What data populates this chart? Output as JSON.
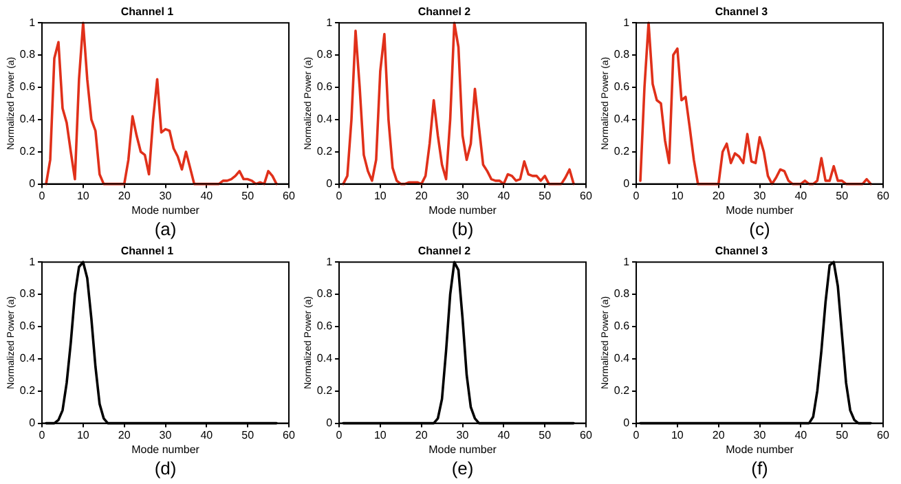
{
  "chart_data": [
    {
      "type": "line",
      "title": "Channel 1",
      "xlabel": "Mode number",
      "ylabel": "Normalized Power (a)",
      "marker": "none",
      "annotations": [
        "(a)"
      ],
      "xlim": [
        0,
        60
      ],
      "xticks": [
        0,
        10,
        20,
        30,
        40,
        50,
        60
      ],
      "ylim": [
        0,
        1
      ],
      "yticks": [
        0,
        0.2,
        0.4,
        0.6,
        0.8,
        1
      ],
      "x": [
        1,
        2,
        3,
        4,
        5,
        6,
        7,
        8,
        9,
        10,
        11,
        12,
        13,
        14,
        15,
        16,
        17,
        18,
        19,
        20,
        21,
        22,
        23,
        24,
        25,
        26,
        27,
        28,
        29,
        30,
        31,
        32,
        33,
        34,
        35,
        36,
        37,
        38,
        39,
        40,
        41,
        42,
        43,
        44,
        45,
        46,
        47,
        48,
        49,
        50,
        51,
        52,
        53,
        54,
        55,
        56,
        57
      ],
      "series": [
        {
          "color": "#e0301a",
          "values": [
            0,
            0.15,
            0.78,
            0.88,
            0.47,
            0.38,
            0.2,
            0.03,
            0.65,
            1,
            0.65,
            0.4,
            0.33,
            0.06,
            0,
            0,
            0,
            0,
            0,
            0,
            0.15,
            0.42,
            0.3,
            0.2,
            0.18,
            0.06,
            0.4,
            0.65,
            0.32,
            0.34,
            0.33,
            0.22,
            0.17,
            0.09,
            0.2,
            0.1,
            0,
            0,
            0,
            0,
            0,
            0,
            0,
            0.02,
            0.02,
            0.03,
            0.05,
            0.08,
            0.03,
            0.03,
            0.02,
            0,
            0.01,
            0,
            0.08,
            0.05,
            0
          ]
        }
      ]
    },
    {
      "type": "line",
      "title": "Channel 2",
      "xlabel": "Mode number",
      "ylabel": "Normalized Power (a)",
      "marker": "none",
      "annotations": [
        "(b)"
      ],
      "xlim": [
        0,
        60
      ],
      "xticks": [
        0,
        10,
        20,
        30,
        40,
        50,
        60
      ],
      "ylim": [
        0,
        1
      ],
      "yticks": [
        0,
        0.2,
        0.4,
        0.6,
        0.8,
        1
      ],
      "x": [
        1,
        2,
        3,
        4,
        5,
        6,
        7,
        8,
        9,
        10,
        11,
        12,
        13,
        14,
        15,
        16,
        17,
        18,
        19,
        20,
        21,
        22,
        23,
        24,
        25,
        26,
        27,
        28,
        29,
        30,
        31,
        32,
        33,
        34,
        35,
        36,
        37,
        38,
        39,
        40,
        41,
        42,
        43,
        44,
        45,
        46,
        47,
        48,
        49,
        50,
        51,
        52,
        53,
        54,
        55,
        56,
        57
      ],
      "series": [
        {
          "color": "#e0301a",
          "values": [
            0,
            0.05,
            0.4,
            0.95,
            0.6,
            0.18,
            0.08,
            0.02,
            0.15,
            0.7,
            0.93,
            0.4,
            0.1,
            0.02,
            0,
            0,
            0.01,
            0.01,
            0.01,
            0,
            0.05,
            0.25,
            0.52,
            0.3,
            0.12,
            0.03,
            0.4,
            1,
            0.85,
            0.3,
            0.15,
            0.25,
            0.59,
            0.35,
            0.12,
            0.08,
            0.03,
            0.02,
            0.02,
            0,
            0.06,
            0.05,
            0.02,
            0.03,
            0.14,
            0.06,
            0.05,
            0.05,
            0.02,
            0.05,
            0,
            0,
            0,
            0,
            0.04,
            0.09,
            0
          ]
        }
      ]
    },
    {
      "type": "line",
      "title": "Channel 3",
      "xlabel": "Mode number",
      "ylabel": "Normalized Power (a)",
      "marker": "none",
      "annotations": [
        "(c)"
      ],
      "xlim": [
        0,
        60
      ],
      "xticks": [
        0,
        10,
        20,
        30,
        40,
        50,
        60
      ],
      "ylim": [
        0,
        1
      ],
      "yticks": [
        0,
        0.2,
        0.4,
        0.6,
        0.8,
        1
      ],
      "x": [
        1,
        2,
        3,
        4,
        5,
        6,
        7,
        8,
        9,
        10,
        11,
        12,
        13,
        14,
        15,
        16,
        17,
        18,
        19,
        20,
        21,
        22,
        23,
        24,
        25,
        26,
        27,
        28,
        29,
        30,
        31,
        32,
        33,
        34,
        35,
        36,
        37,
        38,
        39,
        40,
        41,
        42,
        43,
        44,
        45,
        46,
        47,
        48,
        49,
        50,
        51,
        52,
        53,
        54,
        55,
        56,
        57
      ],
      "series": [
        {
          "color": "#e0301a",
          "values": [
            0.02,
            0.6,
            1,
            0.62,
            0.52,
            0.5,
            0.27,
            0.13,
            0.8,
            0.84,
            0.52,
            0.54,
            0.35,
            0.15,
            0,
            0,
            0,
            0,
            0,
            0,
            0.2,
            0.25,
            0.13,
            0.19,
            0.17,
            0.13,
            0.31,
            0.14,
            0.13,
            0.29,
            0.2,
            0.05,
            0,
            0.04,
            0.09,
            0.08,
            0.02,
            0,
            0,
            0,
            0.02,
            0,
            0,
            0.02,
            0.16,
            0.02,
            0.02,
            0.11,
            0.02,
            0.02,
            0,
            0,
            0,
            0,
            0,
            0.03,
            0
          ]
        }
      ]
    },
    {
      "type": "line",
      "title": "Channel 1",
      "xlabel": "Mode number",
      "ylabel": "Normalized Power (a)",
      "marker": "none",
      "annotations": [
        "(d)"
      ],
      "xlim": [
        0,
        60
      ],
      "xticks": [
        0,
        10,
        20,
        30,
        40,
        50,
        60
      ],
      "ylim": [
        0,
        1
      ],
      "yticks": [
        0,
        0.2,
        0.4,
        0.6,
        0.8,
        1
      ],
      "x": [
        1,
        3,
        4,
        5,
        6,
        7,
        8,
        9,
        10,
        11,
        12,
        13,
        14,
        15,
        16,
        57
      ],
      "series": [
        {
          "color": "#000000",
          "values": [
            0,
            0,
            0.02,
            0.08,
            0.25,
            0.5,
            0.8,
            0.97,
            1,
            0.9,
            0.65,
            0.35,
            0.12,
            0.03,
            0,
            0
          ]
        }
      ]
    },
    {
      "type": "line",
      "title": "Channel 2",
      "xlabel": "Mode number",
      "ylabel": "Normalized Power (a)",
      "marker": "none",
      "annotations": [
        "(e)"
      ],
      "xlim": [
        0,
        60
      ],
      "xticks": [
        0,
        10,
        20,
        30,
        40,
        50,
        60
      ],
      "ylim": [
        0,
        1
      ],
      "yticks": [
        0,
        0.2,
        0.4,
        0.6,
        0.8,
        1
      ],
      "x": [
        1,
        23,
        24,
        25,
        26,
        27,
        28,
        29,
        30,
        31,
        32,
        33,
        34,
        57
      ],
      "series": [
        {
          "color": "#000000",
          "values": [
            0,
            0,
            0.03,
            0.15,
            0.45,
            0.8,
            1,
            0.95,
            0.65,
            0.3,
            0.1,
            0.03,
            0,
            0
          ]
        }
      ]
    },
    {
      "type": "line",
      "title": "Channel 3",
      "xlabel": "Mode number",
      "ylabel": "Normalized Power (a)",
      "marker": "none",
      "annotations": [
        "(f)"
      ],
      "xlim": [
        0,
        60
      ],
      "xticks": [
        0,
        10,
        20,
        30,
        40,
        50,
        60
      ],
      "ylim": [
        0,
        1
      ],
      "yticks": [
        0,
        0.2,
        0.4,
        0.6,
        0.8,
        1
      ],
      "x": [
        1,
        42,
        43,
        44,
        45,
        46,
        47,
        48,
        49,
        50,
        51,
        52,
        53,
        54,
        57
      ],
      "series": [
        {
          "color": "#000000",
          "values": [
            0,
            0,
            0.04,
            0.2,
            0.45,
            0.75,
            0.98,
            1,
            0.85,
            0.55,
            0.25,
            0.08,
            0.02,
            0,
            0
          ]
        }
      ]
    }
  ]
}
